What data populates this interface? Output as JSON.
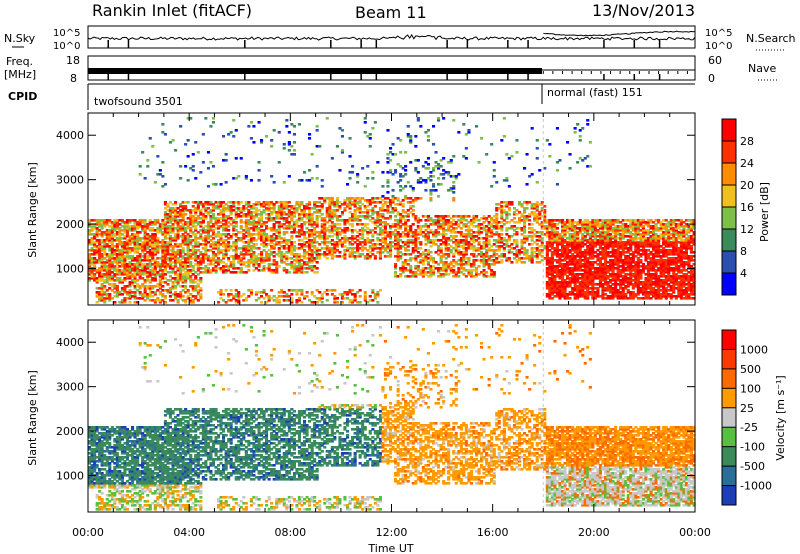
{
  "header": {
    "station": "Rankin Inlet (fitACF)",
    "beam": "Beam 11",
    "date": "13/Nov/2013"
  },
  "top_panels": {
    "nsky_label": "N.Sky",
    "nsky_ticks": [
      "10^5",
      "10^0"
    ],
    "nsearch_label": "N.Search",
    "nsearch_ticks": [
      "10^5",
      "10^0"
    ],
    "freq_label": "Freq.",
    "freq_unit": "[MHz]",
    "freq_ticks": [
      "18",
      "8"
    ],
    "nave_label": "Nave",
    "nave_ticks": [
      "60",
      "0"
    ],
    "cpid_label": "CPID",
    "cpid_modes": [
      {
        "name": "twofsound 3501",
        "start_hour": 0
      },
      {
        "name": "normal (fast) 151",
        "start_hour": 18
      }
    ]
  },
  "chart_data": [
    {
      "type": "heatmap",
      "name": "power",
      "ylabel": "Slant Range [km]",
      "xlabel": "",
      "xlim": [
        0,
        24
      ],
      "ylim": [
        180,
        4500
      ],
      "yticks": [
        "1000",
        "2000",
        "3000",
        "4000"
      ],
      "xticks": [
        "00:00",
        "04:00",
        "08:00",
        "12:00",
        "16:00",
        "20:00",
        "00:00"
      ],
      "colorbar": {
        "label": "Power [dB]",
        "ticks": [
          "4",
          "8",
          "12",
          "16",
          "20",
          "24",
          "28"
        ],
        "colors": [
          "#0000ff",
          "#2a4fb0",
          "#3a8a5a",
          "#7cc04a",
          "#f0c020",
          "#ff8c00",
          "#ff3000",
          "#ff0000"
        ]
      }
    },
    {
      "type": "heatmap",
      "name": "velocity",
      "ylabel": "Slant Range [km]",
      "xlabel": "Time UT",
      "xlim": [
        0,
        24
      ],
      "ylim": [
        180,
        4500
      ],
      "yticks": [
        "1000",
        "2000",
        "3000",
        "4000"
      ],
      "xticks": [
        "00:00",
        "04:00",
        "08:00",
        "12:00",
        "16:00",
        "20:00",
        "00:00"
      ],
      "colorbar": {
        "label": "Velocity [m s⁻¹]",
        "ticks": [
          "1000",
          "500",
          "100",
          "25",
          "-25",
          "-100",
          "-500",
          "-1000"
        ],
        "colors": [
          "#1c3fb8",
          "#2a6f9a",
          "#3a8a5a",
          "#58c040",
          "#c8c8c8",
          "#ff9a00",
          "#ff6a00",
          "#ff3a00",
          "#ff0000"
        ]
      }
    }
  ]
}
